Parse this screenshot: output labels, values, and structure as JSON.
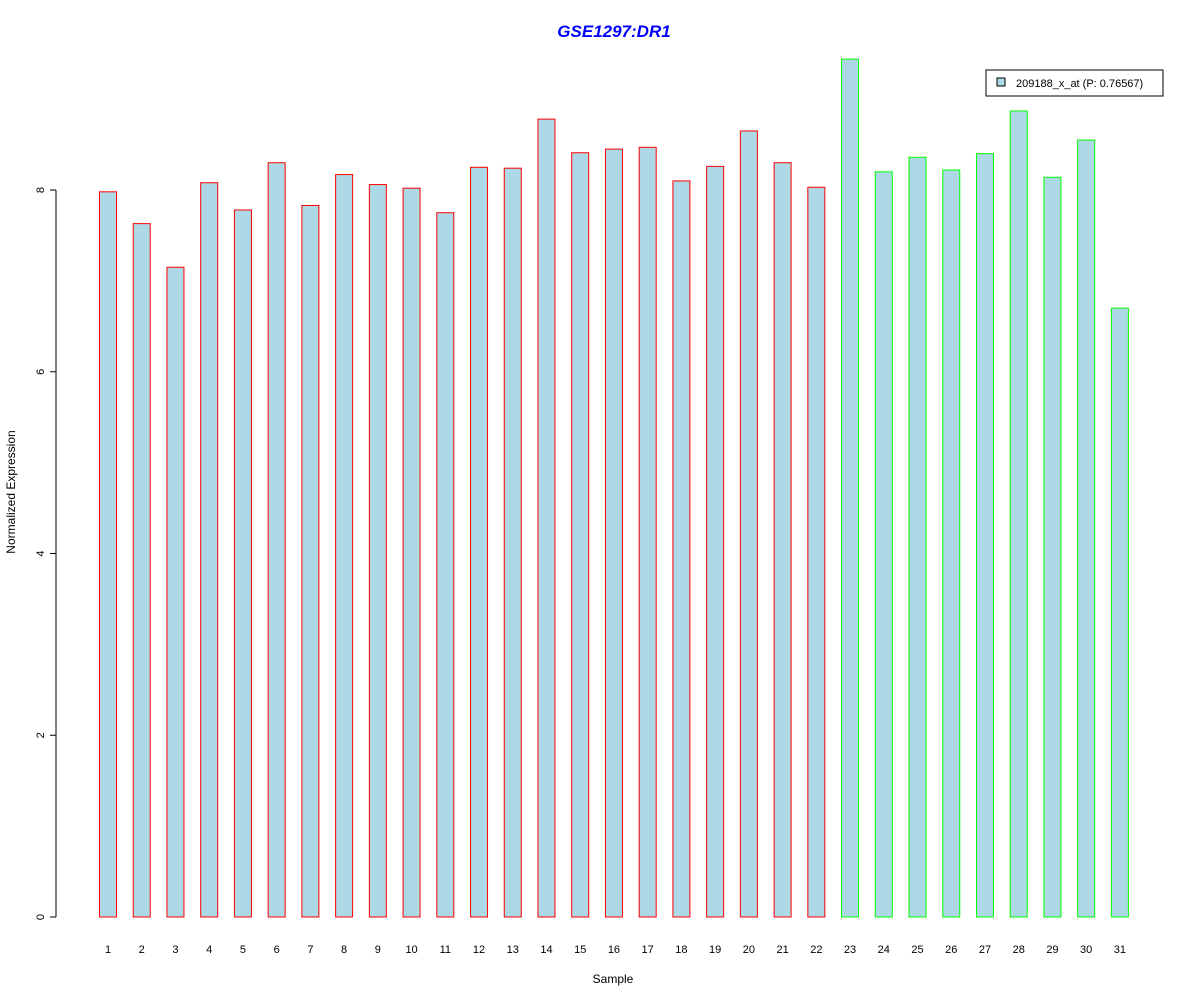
{
  "chart_data": {
    "type": "bar",
    "title": "GSE1297:DR1",
    "xlabel": "Sample",
    "ylabel": "Normalized Expression",
    "ylim": [
      0,
      9.5
    ],
    "yticks": [
      "0",
      "2",
      "4",
      "6",
      "8"
    ],
    "categories": [
      "1",
      "2",
      "3",
      "4",
      "5",
      "6",
      "7",
      "8",
      "9",
      "10",
      "11",
      "12",
      "13",
      "14",
      "15",
      "16",
      "17",
      "18",
      "19",
      "20",
      "21",
      "22",
      "23",
      "24",
      "25",
      "26",
      "27",
      "28",
      "29",
      "30",
      "31"
    ],
    "values": [
      7.98,
      7.63,
      7.15,
      8.08,
      7.78,
      8.3,
      7.83,
      8.17,
      8.06,
      8.02,
      7.75,
      8.25,
      8.24,
      8.78,
      8.41,
      8.45,
      8.47,
      8.1,
      8.26,
      8.65,
      8.3,
      8.03,
      9.44,
      8.2,
      8.36,
      8.22,
      8.4,
      8.87,
      8.14,
      8.55,
      6.7
    ],
    "groups": [
      "red",
      "red",
      "red",
      "red",
      "red",
      "red",
      "red",
      "red",
      "red",
      "red",
      "red",
      "red",
      "red",
      "red",
      "red",
      "red",
      "red",
      "red",
      "red",
      "red",
      "red",
      "red",
      "green",
      "green",
      "green",
      "green",
      "green",
      "green",
      "green",
      "green",
      "green"
    ],
    "fill_color": "#add8e6",
    "border_colors": {
      "red": "#ff0000",
      "green": "#00ff00"
    },
    "legend": {
      "label": "209188_x_at (P: 0.76567)",
      "placement": "top-right"
    },
    "grid": false
  }
}
